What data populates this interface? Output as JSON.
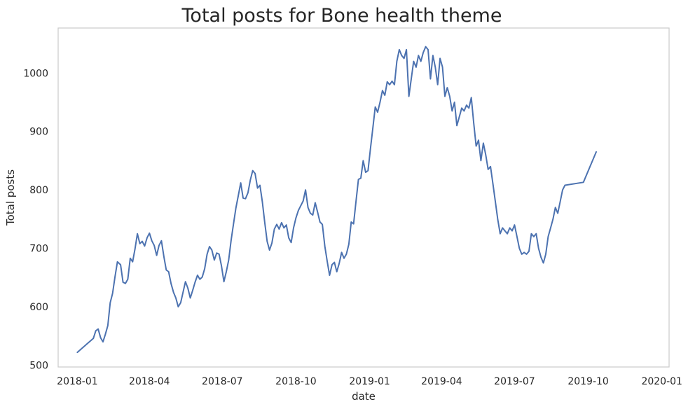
{
  "chart_data": {
    "type": "line",
    "title": "Total posts for Bone health theme",
    "xlabel": "date",
    "ylabel": "Total posts",
    "x_ticks": [
      "2018-01",
      "2018-04",
      "2018-07",
      "2018-10",
      "2019-01",
      "2019-04",
      "2019-07",
      "2019-10",
      "2020-01"
    ],
    "y_ticks": [
      500,
      600,
      700,
      800,
      900,
      1000
    ],
    "xlim": [
      "2017-12-08",
      "2020-01-10"
    ],
    "ylim": [
      497,
      1077
    ],
    "grid": false,
    "series": [
      {
        "color": "#4c72b0",
        "points": [
          [
            "2018-01-01",
            522
          ],
          [
            "2018-01-21",
            546
          ],
          [
            "2018-01-24",
            559
          ],
          [
            "2018-01-27",
            562
          ],
          [
            "2018-01-30",
            547
          ],
          [
            "2018-02-02",
            540
          ],
          [
            "2018-02-05",
            553
          ],
          [
            "2018-02-08",
            568
          ],
          [
            "2018-02-11",
            607
          ],
          [
            "2018-02-14",
            623
          ],
          [
            "2018-02-17",
            651
          ],
          [
            "2018-02-20",
            677
          ],
          [
            "2018-02-24",
            672
          ],
          [
            "2018-02-27",
            642
          ],
          [
            "2018-03-02",
            640
          ],
          [
            "2018-03-05",
            647
          ],
          [
            "2018-03-08",
            683
          ],
          [
            "2018-03-11",
            677
          ],
          [
            "2018-03-14",
            699
          ],
          [
            "2018-03-17",
            725
          ],
          [
            "2018-03-20",
            708
          ],
          [
            "2018-03-23",
            712
          ],
          [
            "2018-03-26",
            704
          ],
          [
            "2018-03-29",
            718
          ],
          [
            "2018-04-01",
            726
          ],
          [
            "2018-04-04",
            713
          ],
          [
            "2018-04-07",
            705
          ],
          [
            "2018-04-10",
            688
          ],
          [
            "2018-04-13",
            705
          ],
          [
            "2018-04-16",
            713
          ],
          [
            "2018-04-19",
            686
          ],
          [
            "2018-04-22",
            663
          ],
          [
            "2018-04-25",
            660
          ],
          [
            "2018-04-28",
            640
          ],
          [
            "2018-05-01",
            625
          ],
          [
            "2018-05-04",
            615
          ],
          [
            "2018-05-07",
            600
          ],
          [
            "2018-05-10",
            607
          ],
          [
            "2018-05-13",
            625
          ],
          [
            "2018-05-16",
            643
          ],
          [
            "2018-05-19",
            632
          ],
          [
            "2018-05-22",
            615
          ],
          [
            "2018-05-25",
            628
          ],
          [
            "2018-05-28",
            642
          ],
          [
            "2018-05-31",
            654
          ],
          [
            "2018-06-03",
            647
          ],
          [
            "2018-06-06",
            651
          ],
          [
            "2018-06-09",
            665
          ],
          [
            "2018-06-12",
            690
          ],
          [
            "2018-06-15",
            703
          ],
          [
            "2018-06-18",
            697
          ],
          [
            "2018-06-21",
            680
          ],
          [
            "2018-06-24",
            692
          ],
          [
            "2018-06-27",
            690
          ],
          [
            "2018-06-30",
            670
          ],
          [
            "2018-07-03",
            643
          ],
          [
            "2018-07-06",
            660
          ],
          [
            "2018-07-09",
            680
          ],
          [
            "2018-07-12",
            714
          ],
          [
            "2018-07-15",
            742
          ],
          [
            "2018-07-18",
            769
          ],
          [
            "2018-07-21",
            790
          ],
          [
            "2018-07-24",
            812
          ],
          [
            "2018-07-27",
            786
          ],
          [
            "2018-07-30",
            785
          ],
          [
            "2018-08-02",
            795
          ],
          [
            "2018-08-05",
            817
          ],
          [
            "2018-08-08",
            833
          ],
          [
            "2018-08-11",
            828
          ],
          [
            "2018-08-14",
            803
          ],
          [
            "2018-08-17",
            808
          ],
          [
            "2018-08-20",
            780
          ],
          [
            "2018-08-23",
            744
          ],
          [
            "2018-08-26",
            712
          ],
          [
            "2018-08-29",
            697
          ],
          [
            "2018-09-01",
            709
          ],
          [
            "2018-09-04",
            733
          ],
          [
            "2018-09-07",
            741
          ],
          [
            "2018-09-10",
            733
          ],
          [
            "2018-09-13",
            744
          ],
          [
            "2018-09-16",
            735
          ],
          [
            "2018-09-19",
            740
          ],
          [
            "2018-09-22",
            718
          ],
          [
            "2018-09-25",
            710
          ],
          [
            "2018-09-28",
            735
          ],
          [
            "2018-10-01",
            752
          ],
          [
            "2018-10-04",
            765
          ],
          [
            "2018-10-07",
            773
          ],
          [
            "2018-10-10",
            781
          ],
          [
            "2018-10-13",
            800
          ],
          [
            "2018-10-16",
            770
          ],
          [
            "2018-10-19",
            760
          ],
          [
            "2018-10-22",
            757
          ],
          [
            "2018-10-25",
            778
          ],
          [
            "2018-10-28",
            762
          ],
          [
            "2018-10-31",
            745
          ],
          [
            "2018-11-03",
            741
          ],
          [
            "2018-11-06",
            704
          ],
          [
            "2018-11-09",
            678
          ],
          [
            "2018-11-12",
            654
          ],
          [
            "2018-11-15",
            672
          ],
          [
            "2018-11-18",
            676
          ],
          [
            "2018-11-21",
            660
          ],
          [
            "2018-11-24",
            674
          ],
          [
            "2018-11-27",
            693
          ],
          [
            "2018-11-30",
            683
          ],
          [
            "2018-12-03",
            690
          ],
          [
            "2018-12-06",
            707
          ],
          [
            "2018-12-09",
            745
          ],
          [
            "2018-12-12",
            742
          ],
          [
            "2018-12-15",
            780
          ],
          [
            "2018-12-18",
            818
          ],
          [
            "2018-12-21",
            820
          ],
          [
            "2018-12-24",
            850
          ],
          [
            "2018-12-27",
            830
          ],
          [
            "2018-12-30",
            833
          ],
          [
            "2019-01-02",
            870
          ],
          [
            "2019-01-05",
            905
          ],
          [
            "2019-01-08",
            942
          ],
          [
            "2019-01-11",
            933
          ],
          [
            "2019-01-14",
            950
          ],
          [
            "2019-01-17",
            970
          ],
          [
            "2019-01-20",
            962
          ],
          [
            "2019-01-23",
            985
          ],
          [
            "2019-01-26",
            980
          ],
          [
            "2019-01-29",
            986
          ],
          [
            "2019-02-01",
            980
          ],
          [
            "2019-02-04",
            1020
          ],
          [
            "2019-02-07",
            1040
          ],
          [
            "2019-02-10",
            1030
          ],
          [
            "2019-02-13",
            1025
          ],
          [
            "2019-02-16",
            1040
          ],
          [
            "2019-02-19",
            960
          ],
          [
            "2019-02-22",
            990
          ],
          [
            "2019-02-25",
            1020
          ],
          [
            "2019-02-28",
            1010
          ],
          [
            "2019-03-03",
            1030
          ],
          [
            "2019-03-06",
            1020
          ],
          [
            "2019-03-09",
            1035
          ],
          [
            "2019-03-12",
            1045
          ],
          [
            "2019-03-15",
            1040
          ],
          [
            "2019-03-18",
            990
          ],
          [
            "2019-03-21",
            1030
          ],
          [
            "2019-03-24",
            1010
          ],
          [
            "2019-03-27",
            980
          ],
          [
            "2019-03-30",
            1025
          ],
          [
            "2019-04-02",
            1010
          ],
          [
            "2019-04-05",
            960
          ],
          [
            "2019-04-08",
            975
          ],
          [
            "2019-04-11",
            960
          ],
          [
            "2019-04-14",
            935
          ],
          [
            "2019-04-17",
            950
          ],
          [
            "2019-04-20",
            910
          ],
          [
            "2019-04-23",
            925
          ],
          [
            "2019-04-26",
            940
          ],
          [
            "2019-04-29",
            935
          ],
          [
            "2019-05-02",
            945
          ],
          [
            "2019-05-05",
            940
          ],
          [
            "2019-05-08",
            958
          ],
          [
            "2019-05-11",
            915
          ],
          [
            "2019-05-14",
            875
          ],
          [
            "2019-05-17",
            885
          ],
          [
            "2019-05-20",
            850
          ],
          [
            "2019-05-23",
            880
          ],
          [
            "2019-05-26",
            860
          ],
          [
            "2019-05-29",
            835
          ],
          [
            "2019-06-01",
            840
          ],
          [
            "2019-06-04",
            810
          ],
          [
            "2019-06-07",
            780
          ],
          [
            "2019-06-10",
            750
          ],
          [
            "2019-06-13",
            725
          ],
          [
            "2019-06-16",
            735
          ],
          [
            "2019-06-19",
            730
          ],
          [
            "2019-06-22",
            725
          ],
          [
            "2019-06-25",
            735
          ],
          [
            "2019-06-28",
            730
          ],
          [
            "2019-07-01",
            740
          ],
          [
            "2019-07-04",
            720
          ],
          [
            "2019-07-07",
            700
          ],
          [
            "2019-07-10",
            690
          ],
          [
            "2019-07-13",
            693
          ],
          [
            "2019-07-16",
            690
          ],
          [
            "2019-07-19",
            695
          ],
          [
            "2019-07-22",
            725
          ],
          [
            "2019-07-25",
            720
          ],
          [
            "2019-07-28",
            725
          ],
          [
            "2019-07-31",
            700
          ],
          [
            "2019-08-03",
            685
          ],
          [
            "2019-08-06",
            675
          ],
          [
            "2019-08-09",
            690
          ],
          [
            "2019-08-12",
            720
          ],
          [
            "2019-08-15",
            735
          ],
          [
            "2019-08-18",
            750
          ],
          [
            "2019-08-21",
            770
          ],
          [
            "2019-08-24",
            760
          ],
          [
            "2019-08-27",
            780
          ],
          [
            "2019-08-30",
            800
          ],
          [
            "2019-09-02",
            808
          ],
          [
            "2019-09-25",
            813
          ],
          [
            "2019-10-11",
            865
          ]
        ]
      }
    ]
  }
}
